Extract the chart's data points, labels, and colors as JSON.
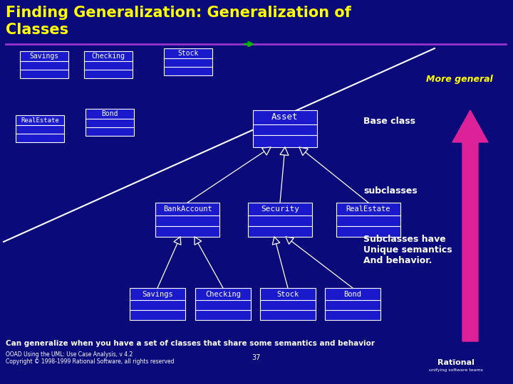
{
  "bg_color": "#0a0a7a",
  "title_line1": "Finding Generalization: Generalization of",
  "title_line2": "Classes",
  "title_color": "#ffff00",
  "title_fontsize": 15,
  "subtitle_line_color": "#9933cc",
  "more_general_text": "More general",
  "more_general_color": "#ffff00",
  "base_class_text": "Base class",
  "base_class_color": "#ffffff",
  "subclasses_text": "subclasses",
  "subclasses_color": "#ffffff",
  "subclasses_have_text": "Subclasses have\nUnique semantics\nAnd behavior.",
  "subclasses_have_color": "#ffffff",
  "bottom_text": "Can generalize when you have a set of classes that share some semantics and behavior",
  "bottom_color": "#ffffff",
  "copyright_text": "OOAD Using the UML: Use Case Analysis, v 4.2\nCopyright © 1998-1999 Rational Software, all rights reserved",
  "copyright_color": "#ffffff",
  "page_number": "37",
  "box_facecolor": "#1a1acc",
  "box_edgecolor": "#ffffff",
  "box_textcolor": "#ffffff",
  "diagonal_line_color": "#ffffff",
  "arrow_shaft_color": "#ffffff",
  "arrow_head_color": "#ffffff",
  "big_arrow_color": "#dd2299",
  "green_arrow_color": "#00bb00"
}
